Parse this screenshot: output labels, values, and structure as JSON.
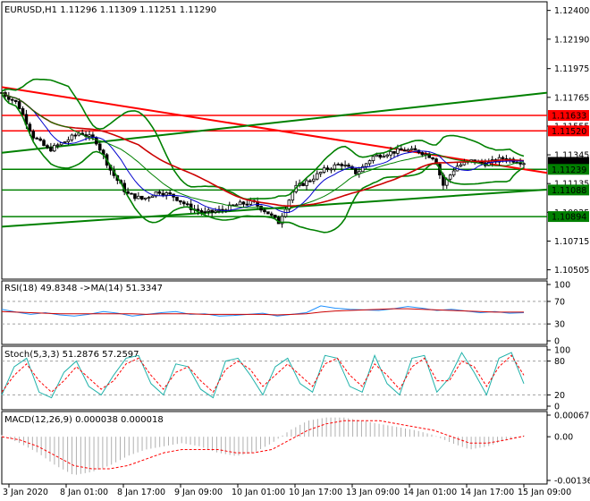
{
  "chart_data": [
    {
      "type": "candlestick",
      "title": "EURUSD,H1  1.11296 1.11309 1.11251 1.11290",
      "symbol": "EURUSD",
      "timeframe": "H1",
      "ohlc": {
        "open": 1.11296,
        "high": 1.11309,
        "low": 1.11251,
        "close": 1.1129
      },
      "ylim": [
        1.1045,
        1.1245
      ],
      "ticks": [
        "1.12400",
        "1.12190",
        "1.11975",
        "1.11765",
        "1.11555",
        "1.11345",
        "1.11135",
        "1.10925",
        "1.10715",
        "1.10505"
      ],
      "tick_values": [
        1.124,
        1.1219,
        1.11975,
        1.11765,
        1.11555,
        1.11345,
        1.11135,
        1.10925,
        1.10715,
        1.10505
      ],
      "price_labels": [
        {
          "text": "1.11633",
          "value": 1.11633,
          "color": "#ff0000"
        },
        {
          "text": "1.11520",
          "value": 1.1152,
          "color": "#ff0000"
        },
        {
          "text": "1.11290",
          "value": 1.1129,
          "color": "#000000"
        },
        {
          "text": "1.11239",
          "value": 1.11239,
          "color": "#008000"
        },
        {
          "text": "1.11088",
          "value": 1.11088,
          "color": "#008000"
        },
        {
          "text": "1.10894",
          "value": 1.10894,
          "color": "#008000"
        }
      ],
      "hlines": [
        {
          "value": 1.11633,
          "color": "#ff0000"
        },
        {
          "value": 1.1152,
          "color": "#ff0000"
        },
        {
          "value": 1.11239,
          "color": "#008000"
        },
        {
          "value": 1.11088,
          "color": "#008000"
        },
        {
          "value": 1.10894,
          "color": "#008000"
        }
      ],
      "trendlines": [
        {
          "color": "#ff0000",
          "from": [
            0,
            1.1184
          ],
          "to": [
            1,
            1.1124
          ]
        },
        {
          "color": "#008000",
          "from": [
            0,
            1.1136
          ],
          "to": [
            1,
            1.1178
          ]
        },
        {
          "color": "#008000",
          "from": [
            0,
            1.1082
          ],
          "to": [
            1,
            1.1108
          ]
        }
      ],
      "close_anchors": [
        [
          0,
          1.118
        ],
        [
          0.03,
          1.1172
        ],
        [
          0.06,
          1.1148
        ],
        [
          0.09,
          1.1138
        ],
        [
          0.12,
          1.1144
        ],
        [
          0.15,
          1.1151
        ],
        [
          0.18,
          1.1145
        ],
        [
          0.21,
          1.1122
        ],
        [
          0.24,
          1.1106
        ],
        [
          0.27,
          1.1102
        ],
        [
          0.3,
          1.1108
        ],
        [
          0.33,
          1.1104
        ],
        [
          0.36,
          1.1096
        ],
        [
          0.39,
          1.1092
        ],
        [
          0.42,
          1.1094
        ],
        [
          0.45,
          1.1098
        ],
        [
          0.48,
          1.11
        ],
        [
          0.51,
          1.1092
        ],
        [
          0.53,
          1.1085
        ],
        [
          0.56,
          1.111
        ],
        [
          0.59,
          1.1116
        ],
        [
          0.62,
          1.1124
        ],
        [
          0.65,
          1.1128
        ],
        [
          0.68,
          1.1121
        ],
        [
          0.71,
          1.1133
        ],
        [
          0.74,
          1.1136
        ],
        [
          0.77,
          1.1138
        ],
        [
          0.8,
          1.1137
        ],
        [
          0.83,
          1.1132
        ],
        [
          0.845,
          1.1112
        ],
        [
          0.87,
          1.1126
        ],
        [
          0.9,
          1.113
        ],
        [
          0.93,
          1.1128
        ],
        [
          0.96,
          1.1132
        ],
        [
          1,
          1.1129
        ]
      ],
      "xlabels": [
        "3 Jan 2020",
        "8 Jan 01:00",
        "8 Jan 17:00",
        "9 Jan 09:00",
        "10 Jan 01:00",
        "10 Jan 17:00",
        "13 Jan 09:00",
        "14 Jan 01:00",
        "14 Jan 17:00",
        "15 Jan 09:00"
      ],
      "indicators": [
        "Bollinger Bands (green)",
        "Moving averages (red, blue)"
      ]
    },
    {
      "type": "line",
      "title": "RSI(18) 49.8348  ->MA(14) 51.3347",
      "ylim": [
        0,
        100
      ],
      "ticks": [
        "100",
        "70",
        "30",
        "0"
      ],
      "tick_values": [
        100,
        70,
        30,
        0
      ],
      "levels": [
        70,
        30
      ],
      "series": [
        {
          "name": "RSI(18)",
          "color": "#1e90ff",
          "values": [
            56,
            51,
            47,
            50,
            46,
            44,
            47,
            52,
            49,
            44,
            47,
            50,
            52,
            47,
            48,
            44,
            45,
            47,
            49,
            44,
            47,
            50,
            62,
            58,
            56,
            55,
            54,
            57,
            61,
            58,
            54,
            56,
            53,
            50,
            52,
            49,
            50
          ]
        },
        {
          "name": "MA(14)",
          "color": "#cc0000",
          "values": [
            52,
            51,
            50,
            49,
            48,
            48,
            48,
            48,
            48,
            48,
            47,
            48,
            48,
            48,
            47,
            47,
            47,
            47,
            47,
            46,
            47,
            48,
            51,
            53,
            54,
            55,
            56,
            57,
            57,
            56,
            55,
            54,
            53,
            52,
            51,
            51,
            51
          ]
        }
      ]
    },
    {
      "type": "line",
      "title": "Stoch(5,3,3) 51.2876 57.2597",
      "ylim": [
        0,
        100
      ],
      "ticks": [
        "100",
        "80",
        "20",
        "0"
      ],
      "tick_values": [
        100,
        80,
        20,
        0
      ],
      "levels": [
        80,
        20
      ],
      "series": [
        {
          "name": "Main",
          "color": "#20b2aa",
          "values": [
            20,
            70,
            85,
            25,
            15,
            60,
            80,
            35,
            20,
            55,
            85,
            90,
            40,
            20,
            75,
            70,
            30,
            15,
            80,
            85,
            55,
            20,
            70,
            85,
            40,
            25,
            90,
            85,
            35,
            25,
            90,
            40,
            20,
            85,
            90,
            25,
            50,
            95,
            60,
            20,
            85,
            95,
            40
          ]
        },
        {
          "name": "Signal",
          "color": "#ff0000",
          "values": [
            25,
            55,
            75,
            45,
            25,
            45,
            70,
            50,
            30,
            45,
            75,
            85,
            55,
            30,
            60,
            70,
            45,
            25,
            65,
            80,
            65,
            35,
            55,
            75,
            55,
            35,
            75,
            85,
            55,
            35,
            75,
            55,
            30,
            70,
            85,
            45,
            45,
            80,
            70,
            35,
            70,
            90,
            55
          ]
        }
      ]
    },
    {
      "type": "bar",
      "title": "MACD(12,26,9) 0.000038 0.000018",
      "ylim": [
        -0.001364,
        0.000675
      ],
      "ticks": [
        "0.000675",
        "0.00",
        "-0.001364"
      ],
      "tick_values": [
        0.000675,
        0,
        -0.001364
      ],
      "series": [
        {
          "name": "MACD",
          "color": "#c0c0c0",
          "type": "bar",
          "values": [
            5e-05,
            -0.0002,
            -0.0005,
            -0.0009,
            -0.0012,
            -0.0011,
            -0.0009,
            -0.0006,
            -0.0004,
            -0.0003,
            -0.0002,
            -0.0003,
            -0.0005,
            -0.0006,
            -0.0005,
            -0.0002,
            0.0002,
            0.0005,
            0.0006,
            0.0006,
            0.0005,
            0.0004,
            0.0003,
            0.0002,
            5e-05,
            -0.0002,
            -0.0004,
            -0.0003,
            -0.0001,
            4e-05
          ]
        },
        {
          "name": "Signal",
          "color": "#ff0000",
          "type": "line",
          "values": [
            0.0,
            -0.0001,
            -0.0003,
            -0.0006,
            -0.0009,
            -0.001,
            -0.001,
            -0.0009,
            -0.0007,
            -0.0005,
            -0.0004,
            -0.0004,
            -0.0004,
            -0.0005,
            -0.0005,
            -0.0004,
            -0.0001,
            0.0002,
            0.0004,
            0.0005,
            0.0005,
            0.0005,
            0.0004,
            0.0003,
            0.0002,
            0.0,
            -0.0002,
            -0.0002,
            -0.0001,
            2e-05
          ]
        }
      ]
    }
  ],
  "colors": {
    "background": "#ffffff",
    "axis": "#000000",
    "bull": "#000000",
    "bear": "#000000",
    "bands": "#008000",
    "support": "#008000",
    "resistance": "#ff0000",
    "ma_red": "#cc0000",
    "ma_blue": "#0000cd"
  }
}
